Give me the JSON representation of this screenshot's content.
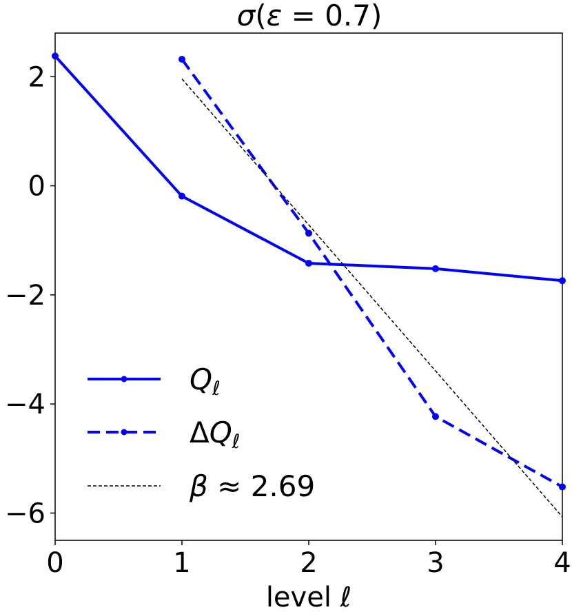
{
  "chart_data": {
    "type": "line",
    "title": "σ(ε = 0.7)",
    "xlabel": "level ℓ",
    "ylabel": "",
    "xlim": [
      0,
      4
    ],
    "ylim": [
      -6.5,
      2.8
    ],
    "x_ticks": [
      0,
      1,
      2,
      3,
      4
    ],
    "y_ticks": [
      2,
      0,
      -2,
      -4,
      -6
    ],
    "x_tick_labels": [
      "0",
      "1",
      "2",
      "3",
      "4"
    ],
    "y_tick_labels": [
      "2",
      "0",
      "−2",
      "−4",
      "−6"
    ],
    "grid": false,
    "legend_position": "lower-left",
    "series": [
      {
        "name": "Qℓ",
        "style": "solid",
        "color": "#0000ff",
        "marker": "circle",
        "x": [
          0,
          1,
          2,
          3,
          4
        ],
        "y": [
          2.38,
          -0.19,
          -1.42,
          -1.52,
          -1.74
        ]
      },
      {
        "name": "ΔQℓ",
        "style": "dashed",
        "color": "#0000ff",
        "marker": "circle",
        "x": [
          1,
          2,
          3,
          4
        ],
        "y": [
          2.32,
          -0.87,
          -4.23,
          -5.52
        ]
      },
      {
        "name": "β ≈ 2.69",
        "style": "dotted-fit",
        "color": "#000000",
        "marker": "none",
        "x": [
          1,
          4
        ],
        "y": [
          1.96,
          -6.07
        ]
      }
    ]
  }
}
